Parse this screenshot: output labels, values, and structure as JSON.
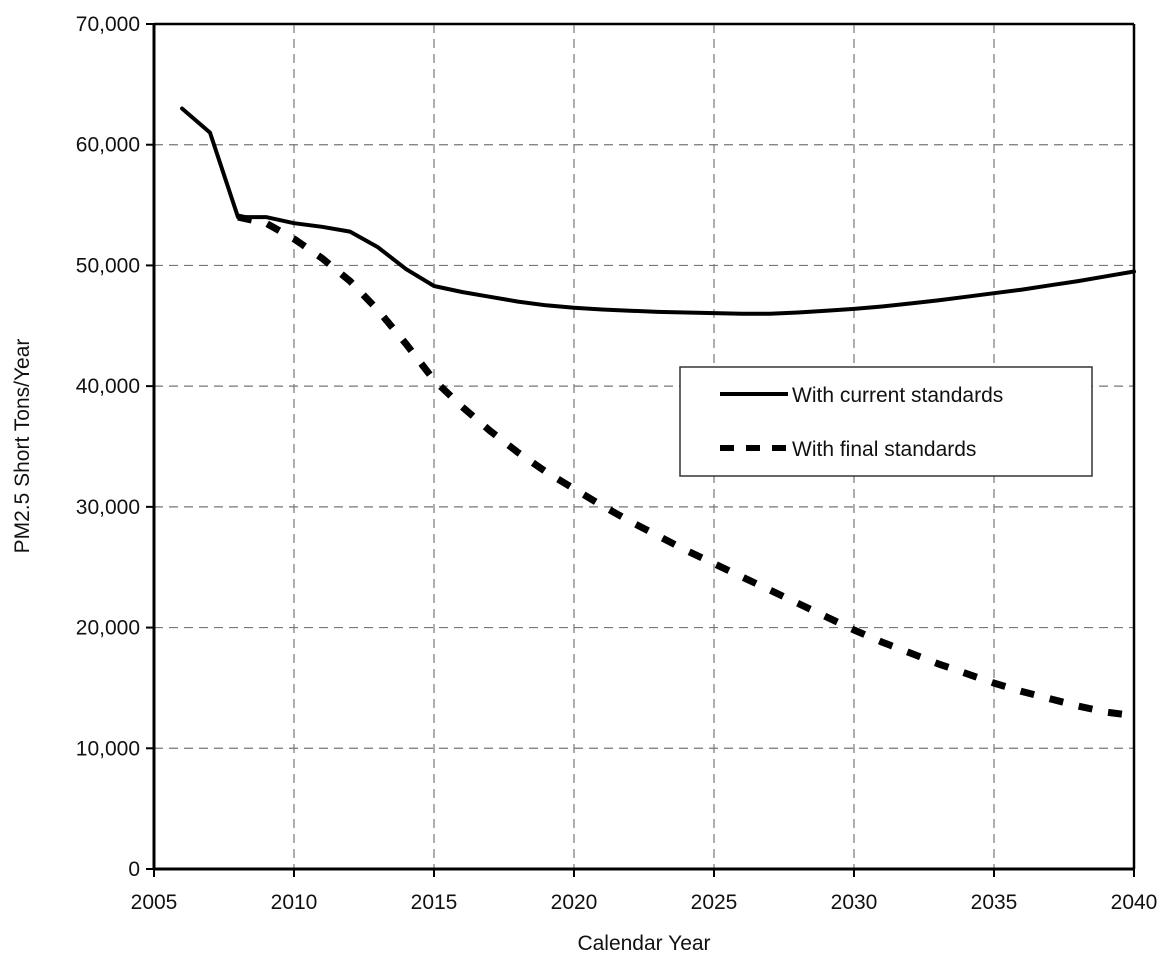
{
  "chart_data": {
    "type": "line",
    "title": "",
    "xlabel": "Calendar Year",
    "ylabel": "PM2.5 Short Tons/Year",
    "xlim": [
      2005,
      2040
    ],
    "ylim": [
      0,
      70000
    ],
    "x_ticks": [
      2005,
      2010,
      2015,
      2020,
      2025,
      2030,
      2035,
      2040
    ],
    "y_ticks": [
      0,
      10000,
      20000,
      30000,
      40000,
      50000,
      60000,
      70000
    ],
    "x_tick_labels": [
      "2005",
      "2010",
      "2015",
      "2020",
      "2025",
      "2030",
      "2035",
      "2040"
    ],
    "y_tick_labels": [
      "0",
      "10,000",
      "20,000",
      "30,000",
      "40,000",
      "50,000",
      "60,000",
      "70,000"
    ],
    "grid": true,
    "legend_position": "center-right",
    "series": [
      {
        "name": "With current standards",
        "style": "solid",
        "color": "#000000",
        "points": [
          [
            2006,
            63000
          ],
          [
            2007,
            61000
          ],
          [
            2008,
            54000
          ],
          [
            2009,
            54000
          ],
          [
            2010,
            53500
          ],
          [
            2011,
            53200
          ],
          [
            2012,
            52800
          ],
          [
            2013,
            51500
          ],
          [
            2014,
            49700
          ],
          [
            2015,
            48300
          ],
          [
            2016,
            47800
          ],
          [
            2017,
            47400
          ],
          [
            2018,
            47000
          ],
          [
            2019,
            46700
          ],
          [
            2020,
            46500
          ],
          [
            2021,
            46350
          ],
          [
            2022,
            46250
          ],
          [
            2023,
            46150
          ],
          [
            2024,
            46100
          ],
          [
            2025,
            46050
          ],
          [
            2026,
            46000
          ],
          [
            2027,
            46000
          ],
          [
            2028,
            46100
          ],
          [
            2029,
            46250
          ],
          [
            2030,
            46400
          ],
          [
            2031,
            46600
          ],
          [
            2032,
            46850
          ],
          [
            2033,
            47100
          ],
          [
            2034,
            47400
          ],
          [
            2035,
            47700
          ],
          [
            2036,
            48000
          ],
          [
            2037,
            48350
          ],
          [
            2038,
            48700
          ],
          [
            2039,
            49100
          ],
          [
            2040,
            49500
          ]
        ]
      },
      {
        "name": "With final standards",
        "style": "dashed",
        "color": "#000000",
        "points": [
          [
            2008,
            54000
          ],
          [
            2009,
            53500
          ],
          [
            2010,
            52200
          ],
          [
            2011,
            50600
          ],
          [
            2012,
            48700
          ],
          [
            2013,
            46300
          ],
          [
            2014,
            43500
          ],
          [
            2015,
            40500
          ],
          [
            2016,
            38300
          ],
          [
            2017,
            36300
          ],
          [
            2018,
            34500
          ],
          [
            2019,
            32900
          ],
          [
            2020,
            31500
          ],
          [
            2021,
            30100
          ],
          [
            2022,
            28800
          ],
          [
            2023,
            27600
          ],
          [
            2024,
            26400
          ],
          [
            2025,
            25300
          ],
          [
            2026,
            24200
          ],
          [
            2027,
            23100
          ],
          [
            2028,
            22000
          ],
          [
            2029,
            20900
          ],
          [
            2030,
            19800
          ],
          [
            2031,
            18800
          ],
          [
            2032,
            17900
          ],
          [
            2033,
            17000
          ],
          [
            2034,
            16200
          ],
          [
            2035,
            15400
          ],
          [
            2036,
            14700
          ],
          [
            2037,
            14100
          ],
          [
            2038,
            13500
          ],
          [
            2039,
            13000
          ],
          [
            2040,
            12700
          ]
        ]
      }
    ]
  }
}
